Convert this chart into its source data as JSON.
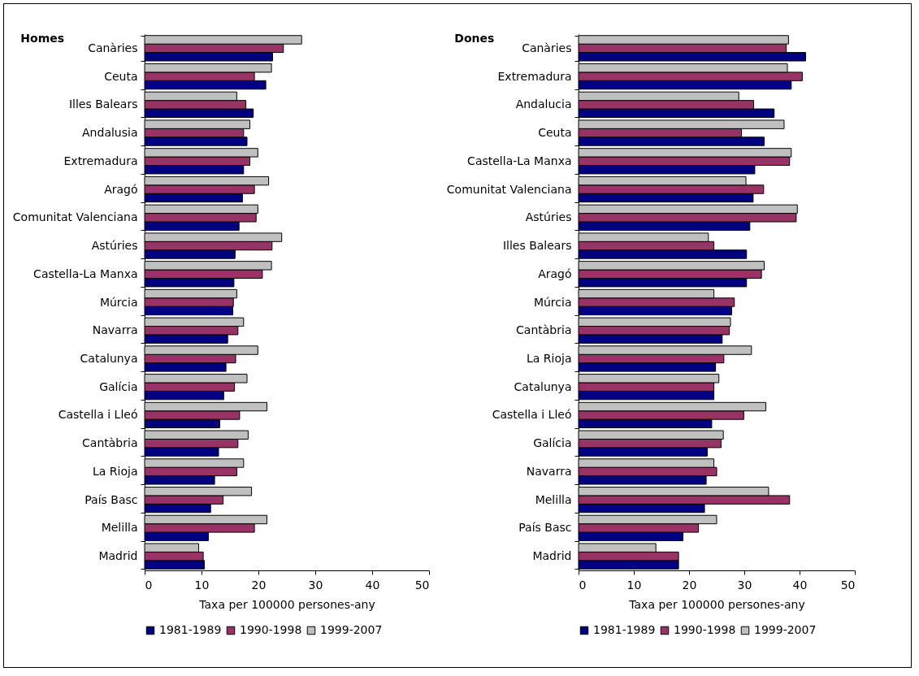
{
  "chart_data": [
    {
      "type": "bar",
      "orientation": "horizontal",
      "title": "Homes",
      "xlabel": "Taxa per 100000 persones-any",
      "xlim": [
        0,
        50
      ],
      "xticks": [
        0,
        10,
        20,
        30,
        40,
        50
      ],
      "legend": "bottom",
      "grid": false,
      "categories": [
        "Canàries",
        "Ceuta",
        "Illes Balears",
        "Andalusia",
        "Extremadura",
        "Aragó",
        "Comunitat Valenciana",
        "Astúries",
        "Castella-La Manxa",
        "Múrcia",
        "Navarra",
        "Catalunya",
        "Galícia",
        "Castella i Lleó",
        "Cantàbria",
        "La Rioja",
        "País Basc",
        "Melilla",
        "Madrid"
      ],
      "series": [
        {
          "name": "1981-1989",
          "color": "#000080",
          "values": [
            22.5,
            21.3,
            19.1,
            18.0,
            17.4,
            17.2,
            16.6,
            15.9,
            15.7,
            15.5,
            14.6,
            14.3,
            13.9,
            13.2,
            13.0,
            12.3,
            11.6,
            11.2,
            10.5
          ]
        },
        {
          "name": "1990-1998",
          "color": "#993366",
          "values": [
            24.4,
            19.3,
            17.8,
            17.4,
            18.5,
            19.3,
            19.6,
            22.4,
            20.7,
            15.6,
            16.4,
            16.0,
            15.8,
            16.7,
            16.4,
            16.2,
            13.8,
            19.3,
            10.3
          ]
        },
        {
          "name": "1999-2007",
          "color": "#c0c0c0",
          "values": [
            27.6,
            22.3,
            16.2,
            18.5,
            19.9,
            21.8,
            19.9,
            24.1,
            22.3,
            16.2,
            17.4,
            19.9,
            18.0,
            21.5,
            18.2,
            17.4,
            18.8,
            21.5,
            9.5
          ]
        }
      ]
    },
    {
      "type": "bar",
      "orientation": "horizontal",
      "title": "Dones",
      "xlabel": "Taxa per 100000 persones-any",
      "xlim": [
        0,
        50
      ],
      "xticks": [
        0,
        10,
        20,
        30,
        40,
        50
      ],
      "legend": "bottom",
      "grid": false,
      "categories": [
        "Canàries",
        "Extremadura",
        "Andalucia",
        "Ceuta",
        "Castella-La Manxa",
        "Comunitat Valenciana",
        "Astúries",
        "Illes Balears",
        "Aragó",
        "Múrcia",
        "Cantàbria",
        "La Rioja",
        "Catalunya",
        "Castella i Lleó",
        "Galícia",
        "Navarra",
        "Melilla",
        "País Basc",
        "Madrid"
      ],
      "series": [
        {
          "name": "1981-1989",
          "color": "#000080",
          "values": [
            41.1,
            38.5,
            35.4,
            33.6,
            31.9,
            31.6,
            31.0,
            30.4,
            30.4,
            27.7,
            26.0,
            24.8,
            24.5,
            24.1,
            23.3,
            23.1,
            22.8,
            18.9,
            18.1
          ]
        },
        {
          "name": "1990-1998",
          "color": "#993366",
          "values": [
            37.6,
            40.5,
            31.7,
            29.5,
            38.2,
            33.5,
            39.4,
            24.5,
            33.1,
            28.2,
            27.3,
            26.3,
            24.5,
            29.9,
            25.8,
            25.0,
            38.2,
            21.7,
            18.1
          ]
        },
        {
          "name": "1999-2007",
          "color": "#c0c0c0",
          "values": [
            38.0,
            37.8,
            29.0,
            37.2,
            38.5,
            30.3,
            39.6,
            23.5,
            33.6,
            24.5,
            27.5,
            31.3,
            25.4,
            33.9,
            26.2,
            24.5,
            34.4,
            25.0,
            14.0
          ]
        }
      ]
    }
  ]
}
